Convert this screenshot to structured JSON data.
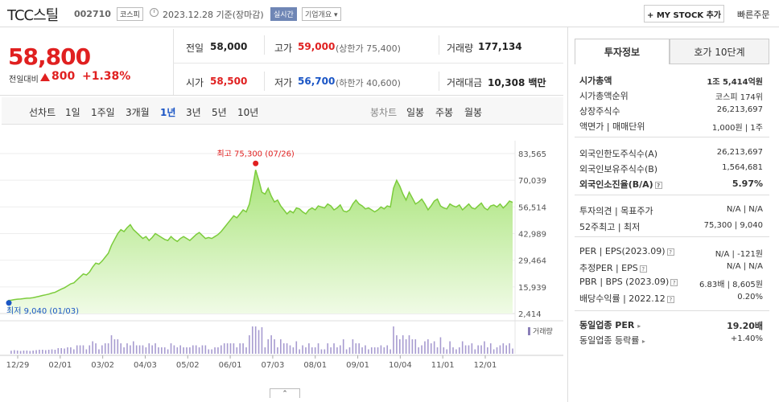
{
  "header": {
    "name": "TCC스틸",
    "code": "002710",
    "market": "코스피",
    "date": "2023.12.28 기준(장마감)",
    "realtime": "실시간",
    "overview": "기업개요 ▾",
    "my_stock": "+ MY STOCK 추가",
    "quick_order": "빠른주문"
  },
  "quote": {
    "price": "58,800",
    "change_label": "전일대비",
    "change": "800",
    "change_pct": "+1.38%",
    "prev_label": "전일",
    "prev": "58,000",
    "high_label": "고가",
    "high": "59,000",
    "upper_limit": "(상한가 75,400)",
    "volume_label": "거래량",
    "volume": "177,134",
    "open_label": "시가",
    "open": "58,500",
    "low_label": "저가",
    "low": "56,700",
    "lower_limit": "(하한가 40,600)",
    "amount_label": "거래대금",
    "amount": "10,308 백만"
  },
  "chart_tabs": {
    "line_label": "선차트",
    "line": [
      "1일",
      "1주일",
      "3개월",
      "1년",
      "3년",
      "5년",
      "10년"
    ],
    "candle_label": "봉차트",
    "candle": [
      "일봉",
      "주봉",
      "월봉"
    ]
  },
  "info_tabs": [
    "투자정보",
    "호가 10단계"
  ],
  "invest": {
    "market_cap_label": "시가총액",
    "market_cap": "1조 5,414억원",
    "rank_label": "시가총액순위",
    "rank": "코스피 174위",
    "shares_label": "상장주식수",
    "shares": "26,213,697",
    "par_label": "액면가 | 매매단위",
    "par": "1,000원 | 1주",
    "foreign_limit_label": "외국인한도주식수(A)",
    "foreign_limit": "26,213,697",
    "foreign_hold_label": "외국인보유주식수(B)",
    "foreign_hold": "1,564,681",
    "foreign_ratio_label": "외국인소진율(B/A)",
    "foreign_ratio": "5.97%",
    "opinion_label": "투자의견 | 목표주가",
    "opinion": "N/A | N/A",
    "w52_label": "52주최고 | 최저",
    "w52": "75,300 | 9,040",
    "per_label": "PER | EPS(2023.09)",
    "per": "N/A | -121원",
    "est_per_label": "추정PER | EPS",
    "est_per": "N/A | N/A",
    "pbr_label": "PBR | BPS (2023.09)",
    "pbr": "6.83배 | 8,605원",
    "div_label": "배당수익률 | 2022.12",
    "div": "0.20%",
    "sector_per_label": "동일업종 PER",
    "sector_per": "19.20배",
    "sector_chg_label": "동일업종 등락률",
    "sector_chg": "+1.40%"
  },
  "chart_data": {
    "type": "area",
    "y_ticks": [
      "83,565",
      "70,039",
      "56,514",
      "42,989",
      "29,464",
      "15,939",
      "2,414"
    ],
    "ylim": [
      2414,
      83565
    ],
    "x_ticks": [
      "12/29",
      "02/01",
      "03/02",
      "04/03",
      "05/02",
      "06/01",
      "07/03",
      "08/01",
      "09/01",
      "10/04",
      "11/01",
      "12/01"
    ],
    "high_note": "최고 75,300 (07/26)",
    "low_note": "최저 9,040 (01/03)",
    "volume_label": "거래량",
    "line_color": "#7ccc3c",
    "fill_color": "#c4f0a0",
    "up_color": "#e02020",
    "low_color": "#1a55c5",
    "series": [
      {
        "values": [
          9040,
          9200,
          9500,
          9700,
          9800,
          10000,
          10200,
          10300,
          10500,
          10800,
          11200,
          11600,
          11900,
          12300,
          12800,
          13200,
          14000,
          14800,
          15500,
          16500,
          17500,
          18000,
          19500,
          21000,
          22500,
          22000,
          23500,
          26000,
          28000,
          27500,
          29000,
          31000,
          33000,
          37000,
          40000,
          43000,
          45000,
          44000,
          46000,
          47500,
          45000,
          43500,
          42000,
          40500,
          41500,
          39500,
          41000,
          43000,
          42000,
          41000,
          40000,
          39500,
          41500,
          40000,
          39000,
          40500,
          41500,
          40500,
          39500,
          41000,
          42500,
          43500,
          42000,
          40500,
          41000,
          40500,
          41500,
          42500,
          44000,
          46000,
          48000,
          50000,
          52000,
          51000,
          53000,
          55000,
          54000,
          58000,
          66000,
          75300,
          70000,
          64000,
          63000,
          66000,
          62000,
          59000,
          60000,
          57000,
          55000,
          53000,
          54500,
          53500,
          56000,
          55500,
          54000,
          53000,
          55000,
          56000,
          55000,
          57000,
          56500,
          56000,
          58000,
          57000,
          55000,
          56000,
          57500,
          54500,
          54000,
          55000,
          58000,
          60000,
          58000,
          57000,
          55500,
          56000,
          55000,
          54000,
          55000,
          56500,
          55500,
          57000,
          56500,
          66000,
          70000,
          67000,
          63000,
          60000,
          64000,
          61000,
          58000,
          59000,
          60500,
          58000,
          55000,
          57000,
          59500,
          60500,
          57000,
          56000,
          55500,
          58000,
          57000,
          56500,
          57500,
          55000,
          56500,
          58000,
          56000,
          55500,
          57000,
          58500,
          56000,
          55000,
          57000,
          57500,
          56500,
          58000,
          56000,
          57500,
          59500,
          58800
        ]
      }
    ]
  }
}
